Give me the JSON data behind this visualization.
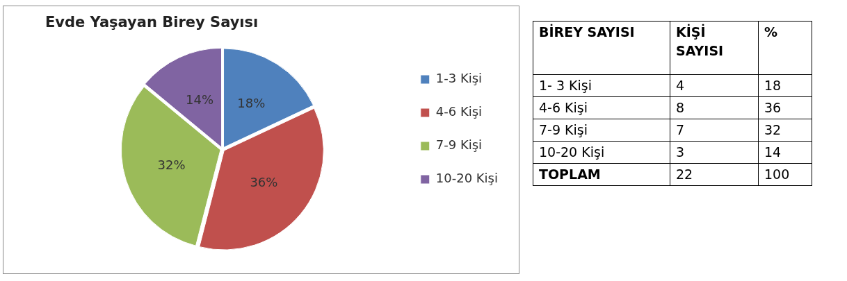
{
  "chart_data": [
    {
      "type": "pie",
      "title": "Evde Yaşayan Birey Sayısı",
      "categories": [
        "1-3 Kişi",
        "4-6 Kişi",
        "7-9 Kişi",
        "10-20 Kişi"
      ],
      "values": [
        18,
        36,
        32,
        14
      ],
      "colors": [
        "#4f81bd",
        "#c0504d",
        "#9bbb59",
        "#8064a2"
      ],
      "value_labels": [
        "18%",
        "36%",
        "32%",
        "14%"
      ],
      "legend": "right"
    },
    {
      "type": "other",
      "categories": [
        "BİREY SAYISI",
        "KİŞİ SAYISI",
        "%"
      ],
      "annotations": [
        "1- 3 Kişi",
        "4",
        "18",
        "4-6 Kişi",
        "8",
        "36",
        "7-9 Kişi",
        "7",
        "32",
        "10-20 Kişi",
        "3",
        "14",
        "TOPLAM",
        "22",
        "100"
      ]
    }
  ]
}
